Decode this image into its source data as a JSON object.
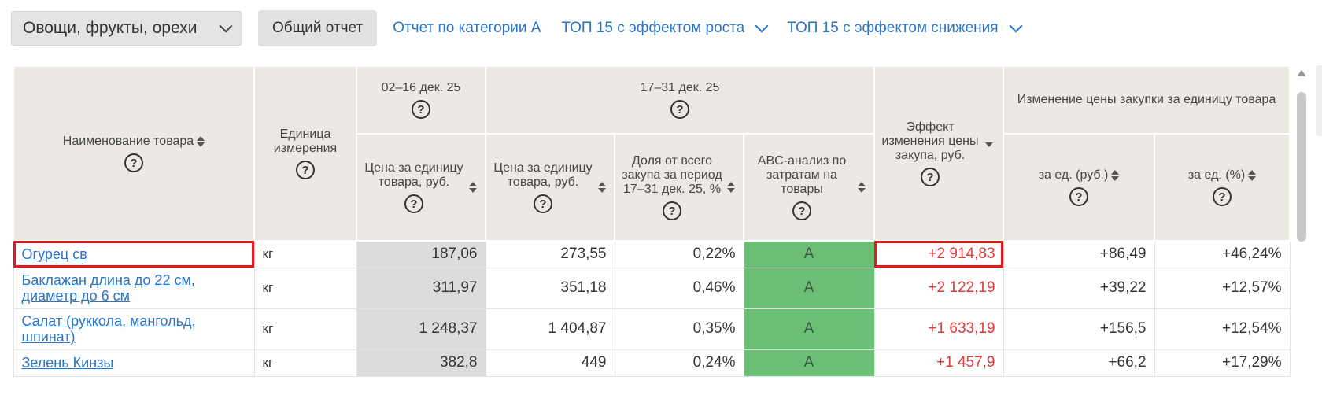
{
  "toolbar": {
    "category_select": "Овощи, фрукты, орехи",
    "general_report": "Общий отчет",
    "category_a_report": "Отчет по категории А",
    "top_growth": "ТОП 15 с эффектом роста",
    "top_decline": "ТОП 15 с эффектом снижения"
  },
  "table": {
    "headers": {
      "name": "Наименование товара",
      "unit": "Единица измерения",
      "period1": "02–16 дек. 25",
      "period2": "17–31 дек. 25",
      "effect": "Эффект изменения цены закупа, руб.",
      "price_change": "Изменение цены закупки за единицу товара",
      "price_p1": "Цена за единицу товара, руб.",
      "price_p2": "Цена за единицу товара, руб.",
      "share": "Доля от всего закупа за период 17–31 дек. 25, %",
      "abc": "ABC-анализ по затратам на товары",
      "change_rub": "за ед. (руб.)",
      "change_pct": "за ед. (%)",
      "help": "?"
    },
    "rows": [
      {
        "name": "Огурец св",
        "unit": "кг",
        "price1": "187,06",
        "price2": "273,55",
        "share": "0,22%",
        "abc": "A",
        "effect": "+2 914,83",
        "change_rub": "+86,49",
        "change_pct": "+46,24%"
      },
      {
        "name": "Баклажан длина до 22 см, диаметр до 6 см",
        "unit": "кг",
        "price1": "311,97",
        "price2": "351,18",
        "share": "0,46%",
        "abc": "A",
        "effect": "+2 122,19",
        "change_rub": "+39,22",
        "change_pct": "+12,57%"
      },
      {
        "name": "Салат (руккола, мангольд, шпинат)",
        "unit": "кг",
        "price1": "1 248,37",
        "price2": "1 404,87",
        "share": "0,35%",
        "abc": "A",
        "effect": "+1 633,19",
        "change_rub": "+156,5",
        "change_pct": "+12,54%"
      },
      {
        "name": "Зелень Кинзы",
        "unit": "кг",
        "price1": "382,8",
        "price2": "449",
        "share": "0,24%",
        "abc": "A",
        "effect": "+1 457,9",
        "change_rub": "+66,2",
        "change_pct": "+17,29%"
      }
    ]
  },
  "colors": {
    "link": "#2a74c4",
    "positive_effect": "#e03a3a",
    "abc_a": "#6dbf78",
    "highlight": "#e8171b",
    "header_bg": "#ece9e4"
  }
}
